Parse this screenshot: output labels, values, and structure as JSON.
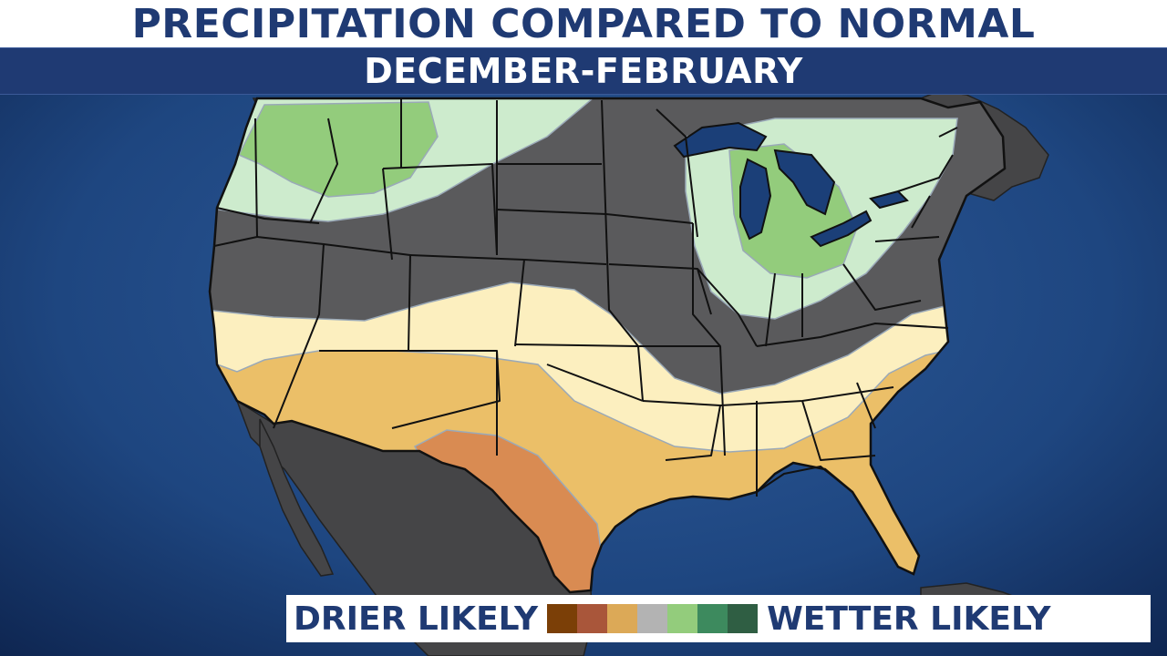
{
  "header": {
    "title": "PRECIPITATION COMPARED TO NORMAL",
    "subtitle": "DECEMBER-FEBRUARY"
  },
  "legend": {
    "drier_label": "DRIER LIKELY",
    "wetter_label": "WETTER LIKELY",
    "swatches": [
      "#7b3f07",
      "#a9563a",
      "#dca957",
      "#b3b3b3",
      "#93cc7c",
      "#3d8a5e",
      "#2f5e43"
    ]
  },
  "colors": {
    "ocean": "#1b3f78",
    "land_normal": "#5a5a5c",
    "land_outside": "#454547",
    "wet_light": "#cdebcd",
    "wet_moderate": "#93cc7c",
    "dry_light": "#fcefbf",
    "dry_moderate": "#ebbf68",
    "dry_high": "#d98b52",
    "border": "#000000",
    "header_blue": "#1f3a73"
  }
}
